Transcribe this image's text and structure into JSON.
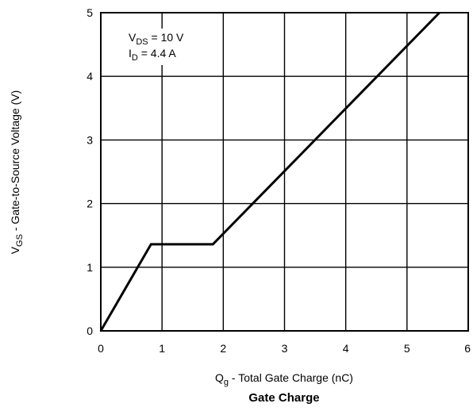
{
  "chart_data": {
    "type": "line",
    "title": "Gate Charge",
    "xlabel": {
      "symbol": "Q",
      "subscript": "g",
      "text": " - Total Gate Charge (nC)"
    },
    "ylabel": {
      "symbol": "V",
      "subscript": "GS",
      "text": " - Gate-to-Source Voltage (V)"
    },
    "xlim": [
      0,
      6
    ],
    "ylim": [
      0,
      5
    ],
    "x_ticks": [
      "0",
      "1",
      "2",
      "3",
      "4",
      "5",
      "6"
    ],
    "y_ticks": [
      "0",
      "1",
      "2",
      "3",
      "4",
      "5"
    ],
    "grid": true,
    "annotations": [
      {
        "symbol": "V",
        "subscript": "DS",
        "text": " = 10 V"
      },
      {
        "symbol": "I",
        "subscript": "D",
        "text": " = 4.4 A"
      }
    ],
    "series": [
      {
        "x": [
          0,
          0.82,
          1.83,
          5.53
        ],
        "y": [
          0,
          1.36,
          1.36,
          5.0
        ]
      }
    ],
    "line_color": "#000000"
  }
}
